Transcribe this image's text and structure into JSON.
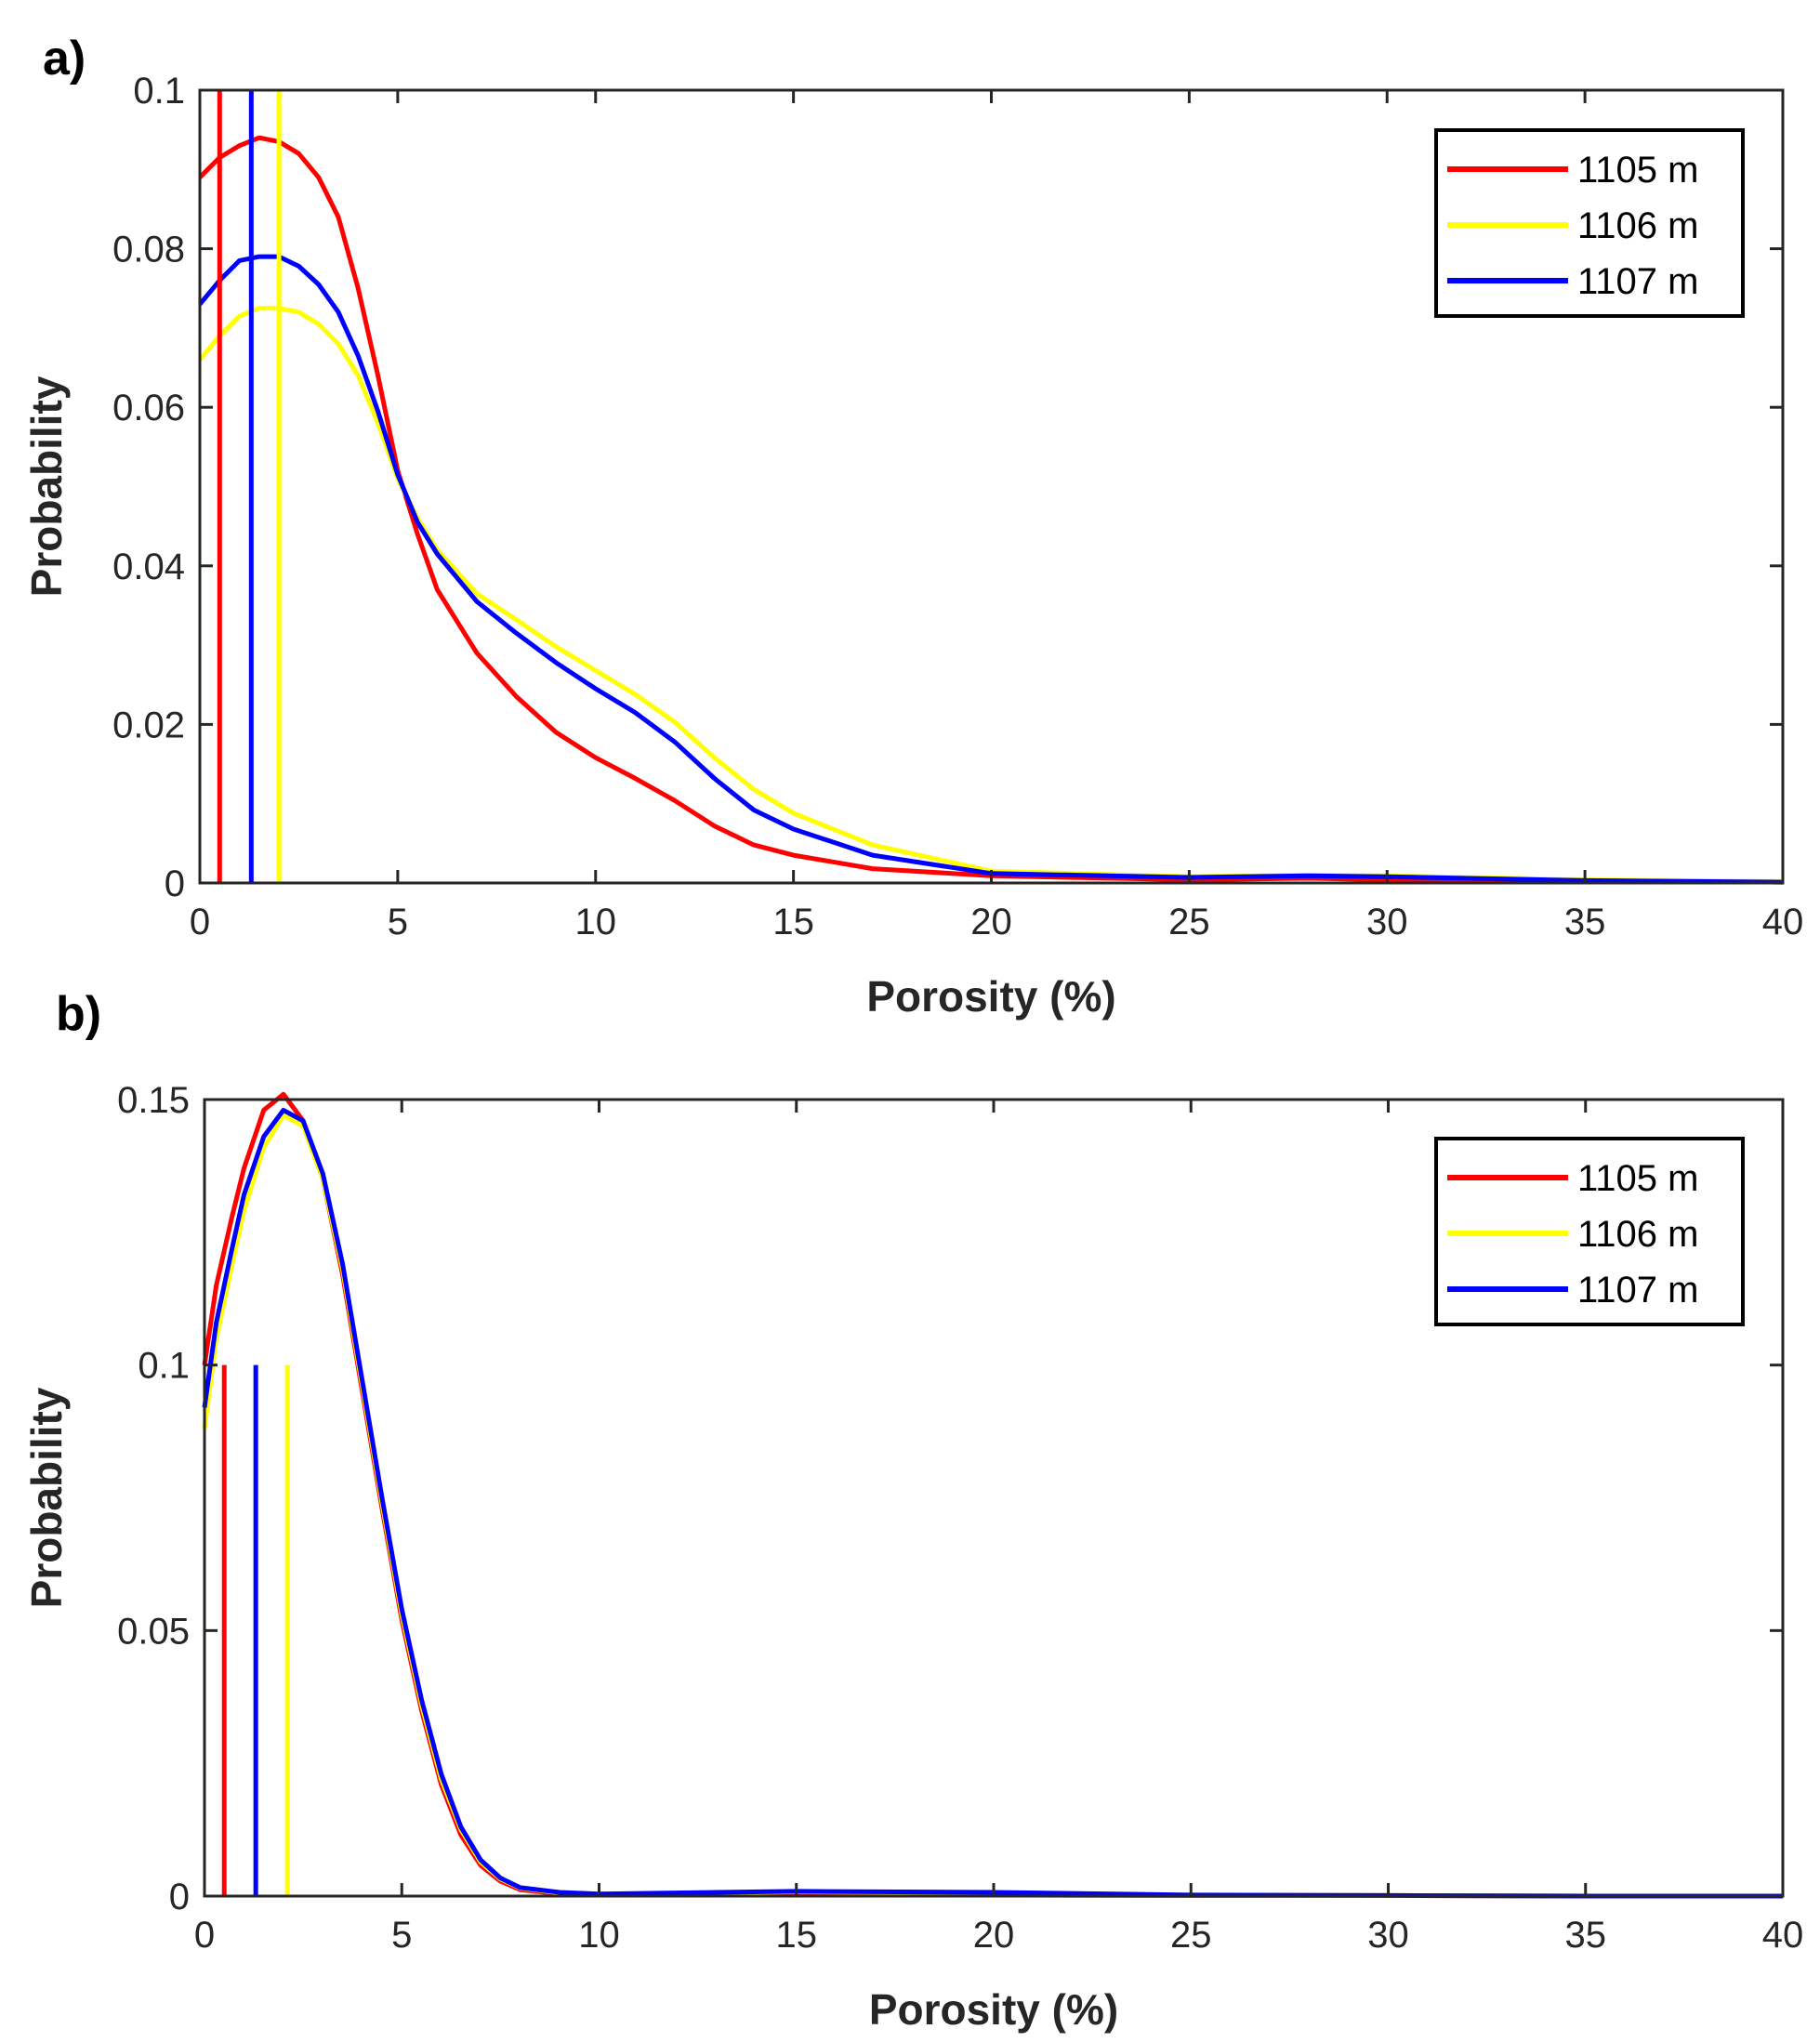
{
  "chart_data": [
    {
      "panel_label": "a)",
      "type": "line",
      "title": "",
      "xlabel": "Porosity (%)",
      "ylabel": "Probability",
      "xlim": [
        0,
        40
      ],
      "ylim": [
        0,
        0.1
      ],
      "xticks": [
        0,
        5,
        10,
        15,
        20,
        25,
        30,
        35,
        40
      ],
      "xtick_labels": [
        "0",
        "5",
        "10",
        "15",
        "20",
        "25",
        "30",
        "35",
        "40"
      ],
      "yticks": [
        0,
        0.02,
        0.04,
        0.06,
        0.08,
        0.1
      ],
      "ytick_labels": [
        "0",
        "0.02",
        "0.04",
        "0.06",
        "0.08",
        "0.1"
      ],
      "legend_position": "top-right",
      "series": [
        {
          "name": "1105 m",
          "color": "#ff0000",
          "x": [
            0,
            0.5,
            1,
            1.5,
            2,
            2.5,
            3,
            3.5,
            4,
            4.5,
            5,
            5.5,
            6,
            7,
            8,
            9,
            10,
            11,
            12,
            13,
            14,
            15,
            17,
            20,
            25,
            28,
            30,
            35,
            40
          ],
          "y": [
            0.089,
            0.0915,
            0.093,
            0.094,
            0.0935,
            0.092,
            0.089,
            0.084,
            0.075,
            0.064,
            0.052,
            0.044,
            0.037,
            0.029,
            0.0235,
            0.019,
            0.0158,
            0.0132,
            0.0104,
            0.0072,
            0.0048,
            0.0035,
            0.0018,
            0.0009,
            0.0004,
            0.0006,
            0.0004,
            0.0002,
            0.0001
          ],
          "vline_x": 0.5
        },
        {
          "name": "1106 m",
          "color": "#ffff00",
          "x": [
            0,
            0.5,
            1,
            1.5,
            2,
            2.5,
            3,
            3.5,
            4,
            4.5,
            5,
            5.5,
            6,
            7,
            8,
            9,
            10,
            11,
            12,
            13,
            14,
            15,
            17,
            20,
            25,
            28,
            30,
            35,
            40
          ],
          "y": [
            0.066,
            0.069,
            0.0715,
            0.0725,
            0.0725,
            0.072,
            0.0705,
            0.068,
            0.064,
            0.058,
            0.051,
            0.046,
            0.042,
            0.0365,
            0.0332,
            0.0298,
            0.0268,
            0.0238,
            0.0203,
            0.0158,
            0.0118,
            0.0088,
            0.0048,
            0.0015,
            0.0008,
            0.001,
            0.0009,
            0.0004,
            0.0002
          ],
          "vline_x": 2
        },
        {
          "name": "1107 m",
          "color": "#0000ff",
          "x": [
            0,
            0.5,
            1,
            1.5,
            2,
            2.5,
            3,
            3.5,
            4,
            4.5,
            5,
            5.5,
            6,
            7,
            8,
            9,
            10,
            11,
            12,
            13,
            14,
            15,
            17,
            20,
            25,
            28,
            30,
            35,
            40
          ],
          "y": [
            0.073,
            0.076,
            0.0785,
            0.079,
            0.079,
            0.0778,
            0.0755,
            0.072,
            0.0665,
            0.0595,
            0.0515,
            0.0455,
            0.0415,
            0.0355,
            0.0315,
            0.0278,
            0.0245,
            0.0215,
            0.0178,
            0.0132,
            0.0092,
            0.0068,
            0.0035,
            0.0012,
            0.0007,
            0.0009,
            0.0008,
            0.0003,
            0.0001
          ],
          "vline_x": 1.3
        }
      ]
    },
    {
      "panel_label": "b)",
      "type": "line",
      "title": "",
      "xlabel": "Porosity (%)",
      "ylabel": "Probability",
      "xlim": [
        0,
        40
      ],
      "ylim": [
        0,
        0.15
      ],
      "xticks": [
        0,
        5,
        10,
        15,
        20,
        25,
        30,
        35,
        40
      ],
      "xtick_labels": [
        "0",
        "5",
        "10",
        "15",
        "20",
        "25",
        "30",
        "35",
        "40"
      ],
      "yticks": [
        0,
        0.05,
        0.1,
        0.15
      ],
      "ytick_labels": [
        "0",
        "0.05",
        "0.1",
        "0.15"
      ],
      "legend_position": "top-right",
      "series": [
        {
          "name": "1105 m",
          "color": "#ff0000",
          "x": [
            0,
            0.3,
            0.7,
            1,
            1.5,
            2,
            2.5,
            3,
            3.5,
            4,
            4.5,
            5,
            5.5,
            6,
            6.5,
            7,
            7.5,
            8,
            9,
            10,
            15,
            20,
            25,
            30,
            35,
            40
          ],
          "y": [
            0.1,
            0.115,
            0.128,
            0.137,
            0.148,
            0.151,
            0.146,
            0.135,
            0.117,
            0.095,
            0.073,
            0.052,
            0.035,
            0.021,
            0.0115,
            0.0058,
            0.0028,
            0.0012,
            0.0004,
            0.0002,
            0.0003,
            0.0002,
            0.0001,
            0.0001,
            0.0,
            0.0
          ],
          "vline_x": 0.5,
          "vline_top": 0.1
        },
        {
          "name": "1106 m",
          "color": "#ffff00",
          "x": [
            0,
            0.3,
            0.7,
            1,
            1.5,
            2,
            2.5,
            3,
            3.5,
            4,
            4.5,
            5,
            5.5,
            6,
            6.5,
            7,
            7.5,
            8,
            9,
            10,
            15,
            20,
            25,
            30,
            35,
            40
          ],
          "y": [
            0.088,
            0.105,
            0.119,
            0.129,
            0.141,
            0.147,
            0.145,
            0.135,
            0.118,
            0.096,
            0.074,
            0.053,
            0.036,
            0.022,
            0.0125,
            0.0064,
            0.0032,
            0.0015,
            0.0006,
            0.0003,
            0.0008,
            0.0006,
            0.0002,
            0.0001,
            0.0,
            0.0
          ],
          "vline_x": 2.1,
          "vline_top": 0.1
        },
        {
          "name": "1107 m",
          "color": "#0000ff",
          "x": [
            0,
            0.3,
            0.7,
            1,
            1.5,
            2,
            2.5,
            3,
            3.5,
            4,
            4.5,
            5,
            5.5,
            6,
            6.5,
            7,
            7.5,
            8,
            9,
            10,
            15,
            20,
            25,
            30,
            35,
            40
          ],
          "y": [
            0.092,
            0.108,
            0.122,
            0.132,
            0.143,
            0.148,
            0.146,
            0.136,
            0.119,
            0.097,
            0.075,
            0.054,
            0.037,
            0.023,
            0.013,
            0.0068,
            0.0034,
            0.0016,
            0.0007,
            0.0004,
            0.0009,
            0.0007,
            0.0002,
            0.0001,
            0.0,
            0.0
          ],
          "vline_x": 1.3,
          "vline_top": 0.1
        }
      ]
    }
  ]
}
